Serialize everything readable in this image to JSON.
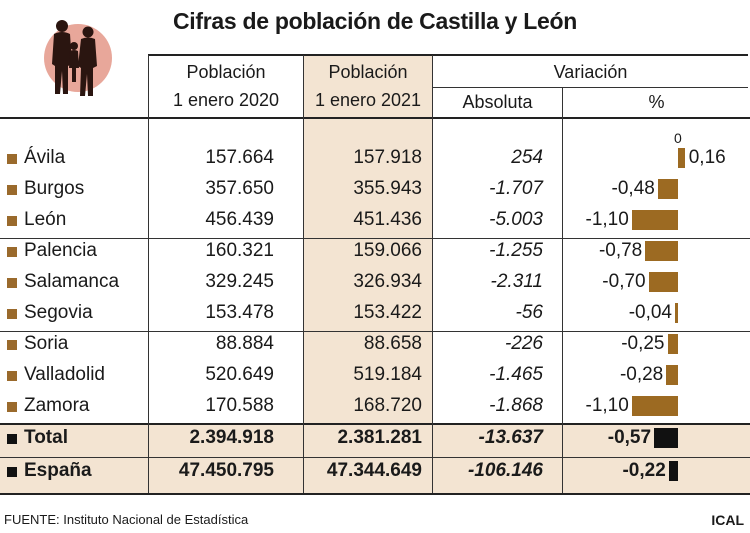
{
  "title": "Cifras de población de Castilla y León",
  "headers": {
    "col1_line1": "Población",
    "col1_line2": "1 enero 2020",
    "col2_line1": "Población",
    "col2_line2": "1 enero 2021",
    "variacion": "Variación",
    "absoluta": "Absoluta",
    "percent": "%"
  },
  "zero_label": "0",
  "rows": [
    {
      "name": "Ávila",
      "p2020": "157.664",
      "p2021": "157.918",
      "abs": "254",
      "pct": "0,16"
    },
    {
      "name": "Burgos",
      "p2020": "357.650",
      "p2021": "355.943",
      "abs": "-1.707",
      "pct": "-0,48"
    },
    {
      "name": "León",
      "p2020": "456.439",
      "p2021": "451.436",
      "abs": "-5.003",
      "pct": "-1,10"
    },
    {
      "name": "Palencia",
      "p2020": "160.321",
      "p2021": "159.066",
      "abs": "-1.255",
      "pct": "-0,78"
    },
    {
      "name": "Salamanca",
      "p2020": "329.245",
      "p2021": "326.934",
      "abs": "-2.311",
      "pct": "-0,70"
    },
    {
      "name": "Segovia",
      "p2020": "153.478",
      "p2021": "153.422",
      "abs": "-56",
      "pct": "-0,04"
    },
    {
      "name": "Soria",
      "p2020": "88.884",
      "p2021": "88.658",
      "abs": "-226",
      "pct": "-0,25"
    },
    {
      "name": "Valladolid",
      "p2020": "520.649",
      "p2021": "519.184",
      "abs": "-1.465",
      "pct": "-0,28"
    },
    {
      "name": "Zamora",
      "p2020": "170.588",
      "p2021": "168.720",
      "abs": "-1.868",
      "pct": "-1,10"
    }
  ],
  "totals": [
    {
      "name": "Total",
      "p2020": "2.394.918",
      "p2021": "2.381.281",
      "abs": "-13.637",
      "pct": "-0,57"
    },
    {
      "name": "España",
      "p2020": "47.450.795",
      "p2021": "47.344.649",
      "abs": "-106.146",
      "pct": "-0,22"
    }
  ],
  "footer": {
    "source": "FUENTE: Instituto Nacional de Estadística",
    "credit": "ICAL"
  },
  "colors": {
    "bar": "#9c6a22",
    "bar_total": "#111111",
    "highlight": "#f3e4d2"
  },
  "chart_data": {
    "type": "bar",
    "title": "Cifras de población de Castilla y León",
    "categories": [
      "Ávila",
      "Burgos",
      "León",
      "Palencia",
      "Salamanca",
      "Segovia",
      "Soria",
      "Valladolid",
      "Zamora",
      "Total",
      "España"
    ],
    "series": [
      {
        "name": "%",
        "values": [
          0.16,
          -0.48,
          -1.1,
          -0.78,
          -0.7,
          -0.04,
          -0.25,
          -0.28,
          -1.1,
          -0.57,
          -0.22
        ]
      }
    ],
    "xlabel": "",
    "ylabel": ""
  }
}
